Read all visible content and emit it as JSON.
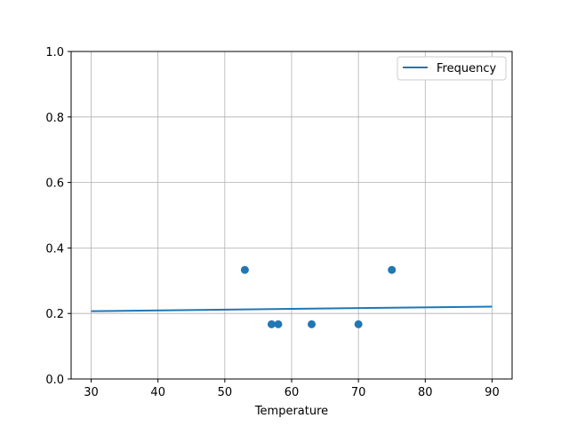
{
  "chart_data": {
    "type": "scatter",
    "title": "",
    "xlabel": "Temperature",
    "ylabel": "",
    "xlim": [
      27,
      93
    ],
    "ylim": [
      0,
      1
    ],
    "xticks": [
      30,
      40,
      50,
      60,
      70,
      80,
      90
    ],
    "yticks": [
      "0.0",
      "0.2",
      "0.4",
      "0.6",
      "0.8",
      "1.0"
    ],
    "grid": true,
    "legend_placement": "top-right",
    "color": "#1f77b4",
    "scatter_points": [
      {
        "x": 53,
        "y": 0.333
      },
      {
        "x": 57,
        "y": 0.167
      },
      {
        "x": 58,
        "y": 0.167
      },
      {
        "x": 63,
        "y": 0.167
      },
      {
        "x": 70,
        "y": 0.167
      },
      {
        "x": 75,
        "y": 0.333
      }
    ],
    "line_series": {
      "name": "Frequency",
      "x": [
        30,
        90
      ],
      "y": [
        0.207,
        0.221
      ]
    }
  }
}
